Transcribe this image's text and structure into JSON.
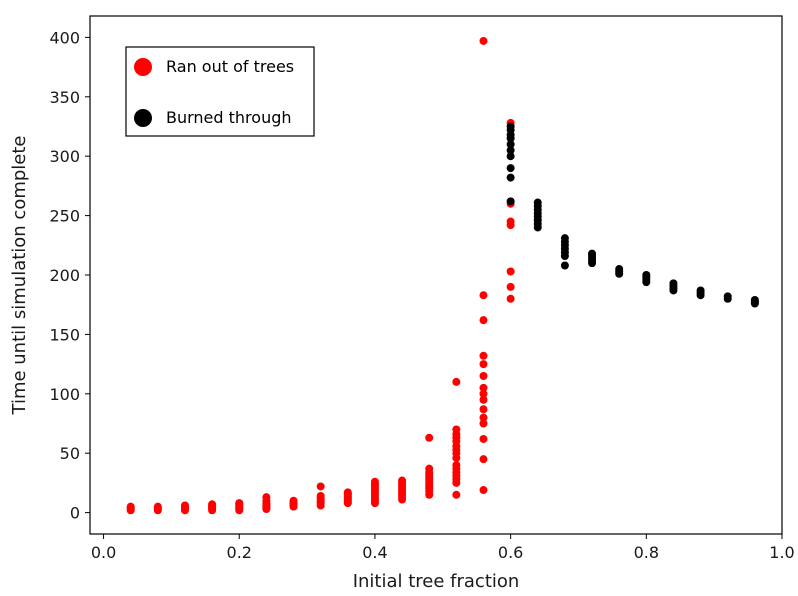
{
  "chart_data": {
    "type": "scatter",
    "xlabel": "Initial tree fraction",
    "ylabel": "Time until simulation complete",
    "xlim": [
      -0.02,
      1.0
    ],
    "ylim": [
      -18,
      418
    ],
    "xticks": [
      0.0,
      0.2,
      0.4,
      0.6,
      0.8,
      1.0
    ],
    "xtick_labels": [
      "0.0",
      "0.2",
      "0.4",
      "0.6",
      "0.8",
      "1.0"
    ],
    "yticks": [
      0,
      50,
      100,
      150,
      200,
      250,
      300,
      350,
      400
    ],
    "ytick_labels": [
      "0",
      "50",
      "100",
      "150",
      "200",
      "250",
      "300",
      "350",
      "400"
    ],
    "grid": false,
    "legend_position": "top-left",
    "series": [
      {
        "name": "Ran out of trees",
        "color": "#ff0000",
        "points": [
          [
            0.04,
            2
          ],
          [
            0.04,
            3
          ],
          [
            0.04,
            4
          ],
          [
            0.04,
            5
          ],
          [
            0.08,
            2
          ],
          [
            0.08,
            3
          ],
          [
            0.08,
            4
          ],
          [
            0.08,
            5
          ],
          [
            0.12,
            2
          ],
          [
            0.12,
            3
          ],
          [
            0.12,
            4
          ],
          [
            0.12,
            5
          ],
          [
            0.12,
            6
          ],
          [
            0.16,
            2
          ],
          [
            0.16,
            3
          ],
          [
            0.16,
            4
          ],
          [
            0.16,
            5
          ],
          [
            0.16,
            6
          ],
          [
            0.16,
            7
          ],
          [
            0.2,
            2
          ],
          [
            0.2,
            3
          ],
          [
            0.2,
            4
          ],
          [
            0.2,
            5
          ],
          [
            0.2,
            6
          ],
          [
            0.2,
            7
          ],
          [
            0.2,
            8
          ],
          [
            0.24,
            3
          ],
          [
            0.24,
            4
          ],
          [
            0.24,
            5
          ],
          [
            0.24,
            6
          ],
          [
            0.24,
            7
          ],
          [
            0.24,
            8
          ],
          [
            0.24,
            10
          ],
          [
            0.24,
            13
          ],
          [
            0.28,
            5
          ],
          [
            0.28,
            6
          ],
          [
            0.28,
            7
          ],
          [
            0.28,
            8
          ],
          [
            0.28,
            9
          ],
          [
            0.28,
            10
          ],
          [
            0.32,
            6
          ],
          [
            0.32,
            8
          ],
          [
            0.32,
            9
          ],
          [
            0.32,
            10
          ],
          [
            0.32,
            12
          ],
          [
            0.32,
            14
          ],
          [
            0.32,
            22
          ],
          [
            0.36,
            8
          ],
          [
            0.36,
            9
          ],
          [
            0.36,
            10
          ],
          [
            0.36,
            11
          ],
          [
            0.36,
            12
          ],
          [
            0.36,
            13
          ],
          [
            0.36,
            14
          ],
          [
            0.36,
            15
          ],
          [
            0.36,
            16
          ],
          [
            0.36,
            17
          ],
          [
            0.4,
            8
          ],
          [
            0.4,
            10
          ],
          [
            0.4,
            12
          ],
          [
            0.4,
            14
          ],
          [
            0.4,
            16
          ],
          [
            0.4,
            18
          ],
          [
            0.4,
            20
          ],
          [
            0.4,
            22
          ],
          [
            0.4,
            24
          ],
          [
            0.4,
            26
          ],
          [
            0.44,
            11
          ],
          [
            0.44,
            13
          ],
          [
            0.44,
            15
          ],
          [
            0.44,
            17
          ],
          [
            0.44,
            19
          ],
          [
            0.44,
            21
          ],
          [
            0.44,
            23
          ],
          [
            0.44,
            25
          ],
          [
            0.44,
            27
          ],
          [
            0.48,
            15
          ],
          [
            0.48,
            18
          ],
          [
            0.48,
            20
          ],
          [
            0.48,
            22
          ],
          [
            0.48,
            24
          ],
          [
            0.48,
            26
          ],
          [
            0.48,
            28
          ],
          [
            0.48,
            30
          ],
          [
            0.48,
            32
          ],
          [
            0.48,
            34
          ],
          [
            0.48,
            37
          ],
          [
            0.48,
            63
          ],
          [
            0.52,
            15
          ],
          [
            0.52,
            25
          ],
          [
            0.52,
            28
          ],
          [
            0.52,
            31
          ],
          [
            0.52,
            34
          ],
          [
            0.52,
            37
          ],
          [
            0.52,
            40
          ],
          [
            0.52,
            46
          ],
          [
            0.52,
            50
          ],
          [
            0.52,
            53
          ],
          [
            0.52,
            56
          ],
          [
            0.52,
            60
          ],
          [
            0.52,
            63
          ],
          [
            0.52,
            66
          ],
          [
            0.52,
            70
          ],
          [
            0.52,
            110
          ],
          [
            0.56,
            19
          ],
          [
            0.56,
            45
          ],
          [
            0.56,
            62
          ],
          [
            0.56,
            75
          ],
          [
            0.56,
            80
          ],
          [
            0.56,
            87
          ],
          [
            0.56,
            95
          ],
          [
            0.56,
            100
          ],
          [
            0.56,
            105
          ],
          [
            0.56,
            115
          ],
          [
            0.56,
            125
          ],
          [
            0.56,
            132
          ],
          [
            0.56,
            162
          ],
          [
            0.56,
            183
          ],
          [
            0.56,
            397
          ],
          [
            0.6,
            180
          ],
          [
            0.6,
            190
          ],
          [
            0.6,
            203
          ],
          [
            0.6,
            242
          ],
          [
            0.6,
            245
          ],
          [
            0.6,
            260
          ],
          [
            0.6,
            328
          ]
        ]
      },
      {
        "name": "Burned through",
        "color": "#000000",
        "points": [
          [
            0.6,
            262
          ],
          [
            0.6,
            282
          ],
          [
            0.6,
            290
          ],
          [
            0.6,
            300
          ],
          [
            0.6,
            305
          ],
          [
            0.6,
            310
          ],
          [
            0.6,
            315
          ],
          [
            0.6,
            318
          ],
          [
            0.6,
            322
          ],
          [
            0.6,
            325
          ],
          [
            0.64,
            240
          ],
          [
            0.64,
            243
          ],
          [
            0.64,
            246
          ],
          [
            0.64,
            249
          ],
          [
            0.64,
            252
          ],
          [
            0.64,
            255
          ],
          [
            0.64,
            258
          ],
          [
            0.64,
            261
          ],
          [
            0.68,
            208
          ],
          [
            0.68,
            216
          ],
          [
            0.68,
            219
          ],
          [
            0.68,
            222
          ],
          [
            0.68,
            225
          ],
          [
            0.68,
            228
          ],
          [
            0.68,
            231
          ],
          [
            0.72,
            210
          ],
          [
            0.72,
            212
          ],
          [
            0.72,
            214
          ],
          [
            0.72,
            216
          ],
          [
            0.72,
            218
          ],
          [
            0.76,
            201
          ],
          [
            0.76,
            203
          ],
          [
            0.76,
            205
          ],
          [
            0.8,
            194
          ],
          [
            0.8,
            196
          ],
          [
            0.8,
            198
          ],
          [
            0.8,
            200
          ],
          [
            0.84,
            187
          ],
          [
            0.84,
            189
          ],
          [
            0.84,
            191
          ],
          [
            0.84,
            193
          ],
          [
            0.88,
            183
          ],
          [
            0.88,
            185
          ],
          [
            0.88,
            187
          ],
          [
            0.92,
            180
          ],
          [
            0.92,
            182
          ],
          [
            0.96,
            176
          ],
          [
            0.96,
            177
          ],
          [
            0.96,
            178
          ],
          [
            0.96,
            179
          ]
        ]
      }
    ]
  }
}
